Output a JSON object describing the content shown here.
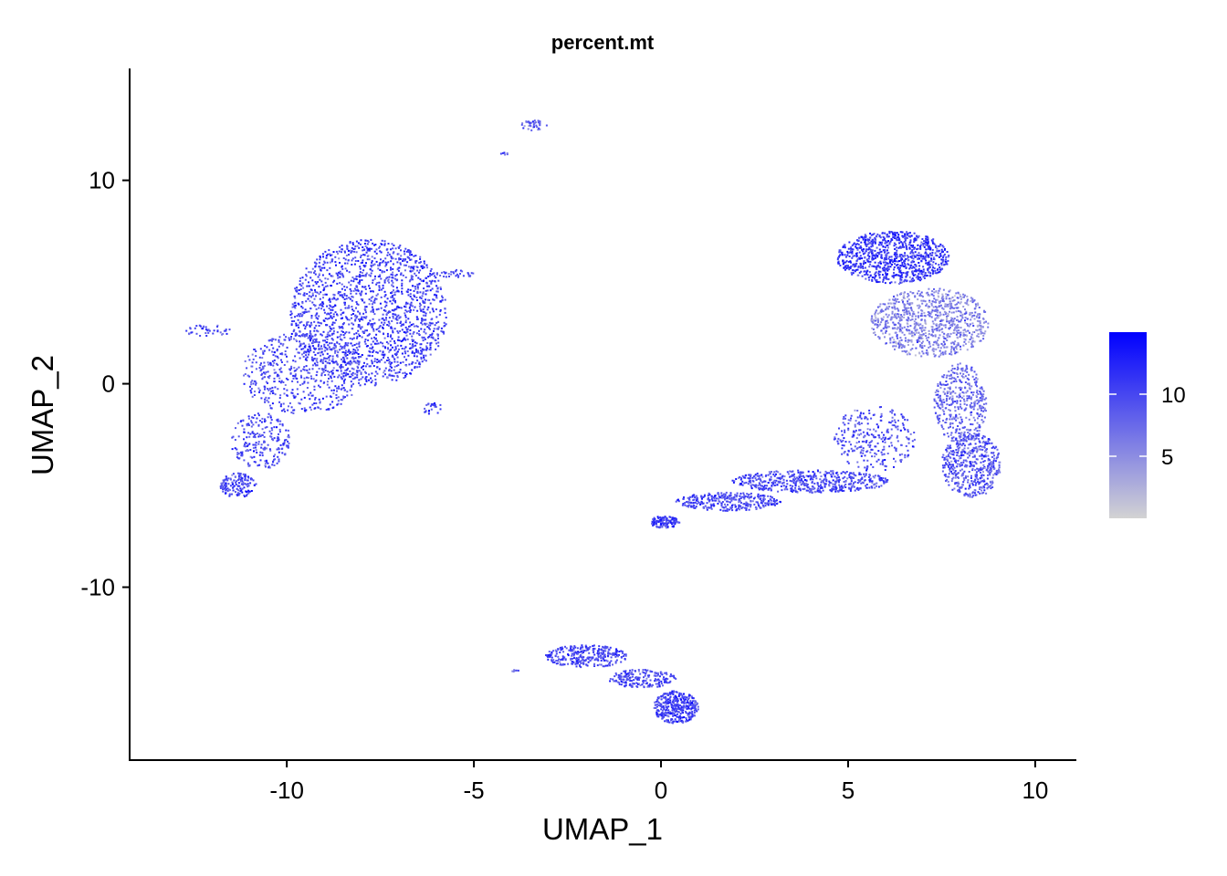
{
  "chart_data": {
    "type": "scatter",
    "title": "percent.mt",
    "xlabel": "UMAP_1",
    "ylabel": "UMAP_2",
    "xlim": [
      -14.2,
      11.1
    ],
    "ylim": [
      -18.5,
      15.5
    ],
    "x_ticks": [
      -10,
      -5,
      0,
      5,
      10
    ],
    "y_ticks": [
      -10,
      0,
      10
    ],
    "grid": false,
    "legend_position": "right",
    "color_scale": {
      "variable": "percent.mt",
      "low_color": "#d3d3d3",
      "high_color": "#0000ff",
      "min": 0,
      "max": 15,
      "ticks": [
        5,
        10
      ]
    },
    "clusters": [
      {
        "cx": -7.8,
        "cy": 3.5,
        "rx": 2.1,
        "ry": 3.6,
        "n": 1700,
        "mt_mean": 10.5
      },
      {
        "cx": -9.6,
        "cy": 0.5,
        "rx": 1.6,
        "ry": 2.0,
        "n": 500,
        "mt_mean": 10.0
      },
      {
        "cx": -10.7,
        "cy": -2.8,
        "rx": 0.8,
        "ry": 1.4,
        "n": 220,
        "mt_mean": 10.0
      },
      {
        "cx": -11.3,
        "cy": -5.0,
        "rx": 0.5,
        "ry": 0.6,
        "n": 150,
        "mt_mean": 10.5
      },
      {
        "cx": -12.1,
        "cy": 2.6,
        "rx": 0.6,
        "ry": 0.3,
        "n": 40,
        "mt_mean": 10.0
      },
      {
        "cx": -5.5,
        "cy": 5.4,
        "rx": 0.5,
        "ry": 0.2,
        "n": 35,
        "mt_mean": 9.5
      },
      {
        "cx": -6.1,
        "cy": -1.2,
        "rx": 0.3,
        "ry": 0.3,
        "n": 25,
        "mt_mean": 10.0
      },
      {
        "cx": -3.4,
        "cy": 12.7,
        "rx": 0.35,
        "ry": 0.25,
        "n": 40,
        "mt_mean": 8.0
      },
      {
        "cx": -4.2,
        "cy": 11.3,
        "rx": 0.1,
        "ry": 0.1,
        "n": 6,
        "mt_mean": 9.0
      },
      {
        "cx": 6.2,
        "cy": 6.2,
        "rx": 1.5,
        "ry": 1.3,
        "n": 900,
        "mt_mean": 11.0
      },
      {
        "cx": 7.2,
        "cy": 3.0,
        "rx": 1.6,
        "ry": 1.7,
        "n": 900,
        "mt_mean": 6.0
      },
      {
        "cx": 8.0,
        "cy": -1.0,
        "rx": 0.7,
        "ry": 2.0,
        "n": 400,
        "mt_mean": 7.5
      },
      {
        "cx": 8.3,
        "cy": -4.0,
        "rx": 0.8,
        "ry": 1.6,
        "n": 500,
        "mt_mean": 9.0
      },
      {
        "cx": 5.7,
        "cy": -2.7,
        "rx": 1.1,
        "ry": 1.6,
        "n": 280,
        "mt_mean": 9.5
      },
      {
        "cx": 4.0,
        "cy": -4.8,
        "rx": 2.1,
        "ry": 0.55,
        "n": 520,
        "mt_mean": 10.0
      },
      {
        "cx": 1.8,
        "cy": -5.8,
        "rx": 1.4,
        "ry": 0.45,
        "n": 320,
        "mt_mean": 10.0
      },
      {
        "cx": 0.1,
        "cy": -6.8,
        "rx": 0.4,
        "ry": 0.3,
        "n": 120,
        "mt_mean": 10.5
      },
      {
        "cx": -2.0,
        "cy": -13.4,
        "rx": 1.1,
        "ry": 0.55,
        "n": 300,
        "mt_mean": 10.0
      },
      {
        "cx": -0.5,
        "cy": -14.5,
        "rx": 0.9,
        "ry": 0.45,
        "n": 200,
        "mt_mean": 10.0
      },
      {
        "cx": 0.4,
        "cy": -15.9,
        "rx": 0.6,
        "ry": 0.8,
        "n": 360,
        "mt_mean": 10.5
      },
      {
        "cx": -3.9,
        "cy": -14.1,
        "rx": 0.1,
        "ry": 0.05,
        "n": 6,
        "mt_mean": 9.0
      }
    ]
  }
}
